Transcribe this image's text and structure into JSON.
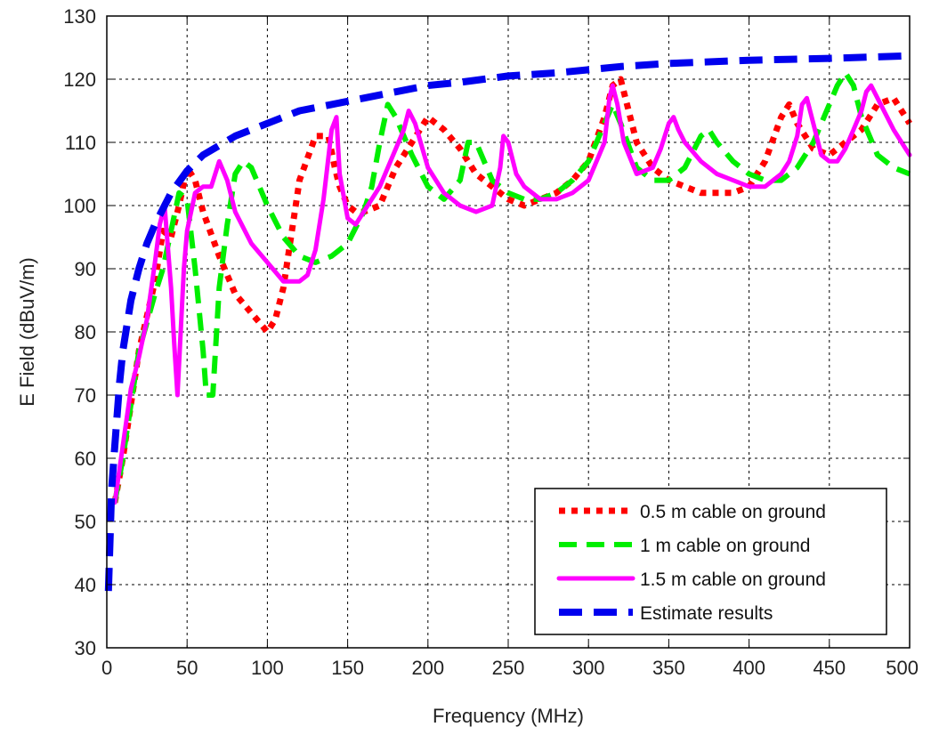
{
  "chart_data": {
    "type": "line",
    "title": "",
    "xlabel": "Frequency (MHz)",
    "ylabel": "E Field (dBuV/m)",
    "xlim": [
      0,
      500
    ],
    "ylim": [
      30,
      130
    ],
    "xticks": [
      0,
      50,
      100,
      150,
      200,
      250,
      300,
      350,
      400,
      450,
      500
    ],
    "yticks": [
      30,
      40,
      50,
      60,
      70,
      80,
      90,
      100,
      110,
      120,
      130
    ],
    "grid": true,
    "legend_position": "bottom-right",
    "series": [
      {
        "name": "0.5 m cable on ground",
        "color": "#ff0000",
        "style": "dotted",
        "x": [
          5,
          10,
          20,
          30,
          35,
          40,
          45,
          50,
          55,
          60,
          70,
          80,
          90,
          100,
          105,
          110,
          120,
          130,
          138,
          142,
          145,
          150,
          155,
          160,
          170,
          180,
          190,
          200,
          210,
          220,
          230,
          240,
          250,
          260,
          270,
          280,
          290,
          300,
          310,
          315,
          320,
          330,
          340,
          350,
          360,
          370,
          380,
          390,
          400,
          410,
          420,
          425,
          430,
          440,
          450,
          460,
          470,
          480,
          490,
          500
        ],
        "y": [
          53,
          60,
          77,
          88,
          96,
          95,
          100,
          106,
          104,
          99,
          92,
          86,
          83,
          80,
          82,
          87,
          104,
          111,
          111,
          106,
          103,
          100,
          99,
          99,
          100,
          106,
          110,
          114,
          112,
          109,
          105,
          103,
          101,
          100,
          101,
          102,
          104,
          107,
          114,
          119,
          120,
          110,
          106,
          104,
          103,
          102,
          102,
          102,
          103,
          107,
          114,
          116,
          113,
          109,
          108,
          110,
          112,
          116,
          117,
          113
        ]
      },
      {
        "name": "1 m cable on ground",
        "color": "#00ee00",
        "style": "dashed",
        "x": [
          5,
          10,
          20,
          30,
          35,
          40,
          45,
          50,
          55,
          60,
          62,
          66,
          70,
          75,
          80,
          85,
          90,
          100,
          110,
          120,
          130,
          140,
          150,
          160,
          165,
          170,
          175,
          180,
          190,
          200,
          210,
          220,
          225,
          230,
          240,
          250,
          260,
          270,
          280,
          290,
          300,
          310,
          315,
          320,
          330,
          340,
          350,
          360,
          370,
          375,
          380,
          390,
          400,
          410,
          420,
          430,
          440,
          450,
          455,
          460,
          465,
          470,
          480,
          490,
          500
        ],
        "y": [
          53,
          60,
          77,
          86,
          90,
          96,
          102,
          101,
          90,
          77,
          70,
          70,
          87,
          97,
          105,
          107,
          106,
          100,
          95,
          92,
          91,
          92,
          94,
          99,
          103,
          110,
          116,
          114,
          108,
          103,
          101,
          104,
          110,
          110,
          104,
          102,
          101,
          101,
          102,
          104,
          107,
          113,
          116,
          113,
          106,
          104,
          104,
          106,
          111,
          112,
          110,
          107,
          105,
          104,
          104,
          106,
          110,
          116,
          119,
          121,
          119,
          114,
          108,
          106,
          105
        ]
      },
      {
        "name": "1.5 m cable on ground",
        "color": "#ff00ff",
        "style": "solid",
        "x": [
          5,
          10,
          15,
          20,
          25,
          30,
          33,
          36,
          40,
          42,
          44,
          46,
          48,
          50,
          55,
          60,
          65,
          70,
          75,
          80,
          90,
          100,
          110,
          120,
          125,
          130,
          135,
          140,
          143,
          145,
          150,
          155,
          160,
          170,
          180,
          185,
          188,
          192,
          200,
          210,
          220,
          230,
          240,
          245,
          247,
          250,
          255,
          260,
          270,
          280,
          290,
          300,
          310,
          313,
          315,
          318,
          322,
          330,
          340,
          345,
          350,
          353,
          356,
          360,
          370,
          380,
          390,
          400,
          410,
          420,
          425,
          430,
          433,
          436,
          440,
          445,
          450,
          455,
          460,
          465,
          470,
          473,
          476,
          480,
          490,
          500
        ],
        "y": [
          53,
          62,
          71,
          76,
          82,
          91,
          97,
          100,
          87,
          78,
          70,
          80,
          90,
          96,
          102,
          103,
          103,
          107,
          104,
          99,
          94,
          91,
          88,
          88,
          89,
          93,
          101,
          112,
          114,
          105,
          98,
          97,
          99,
          103,
          109,
          112,
          115,
          113,
          106,
          102,
          100,
          99,
          100,
          106,
          111,
          110,
          105,
          103,
          101,
          101,
          102,
          104,
          110,
          117,
          119,
          116,
          110,
          105,
          106,
          109,
          113,
          114,
          112,
          110,
          107,
          105,
          104,
          103,
          103,
          105,
          107,
          111,
          116,
          117,
          113,
          108,
          107,
          107,
          109,
          112,
          115,
          118,
          119,
          117,
          112,
          108
        ]
      },
      {
        "name": "Estimate results",
        "color": "#0000ee",
        "style": "dashed-thick",
        "x": [
          1,
          3,
          5,
          8,
          10,
          15,
          20,
          25,
          30,
          40,
          50,
          60,
          70,
          80,
          100,
          120,
          140,
          160,
          180,
          200,
          220,
          250,
          280,
          300,
          320,
          350,
          400,
          450,
          500
        ],
        "y": [
          39,
          55,
          62,
          72,
          77,
          85,
          90,
          94,
          97,
          102,
          105.5,
          108,
          109.5,
          111,
          113,
          115,
          116,
          117,
          118,
          119,
          119.5,
          120.5,
          121,
          121.5,
          122,
          122.5,
          123,
          123.3,
          123.7
        ]
      }
    ]
  }
}
